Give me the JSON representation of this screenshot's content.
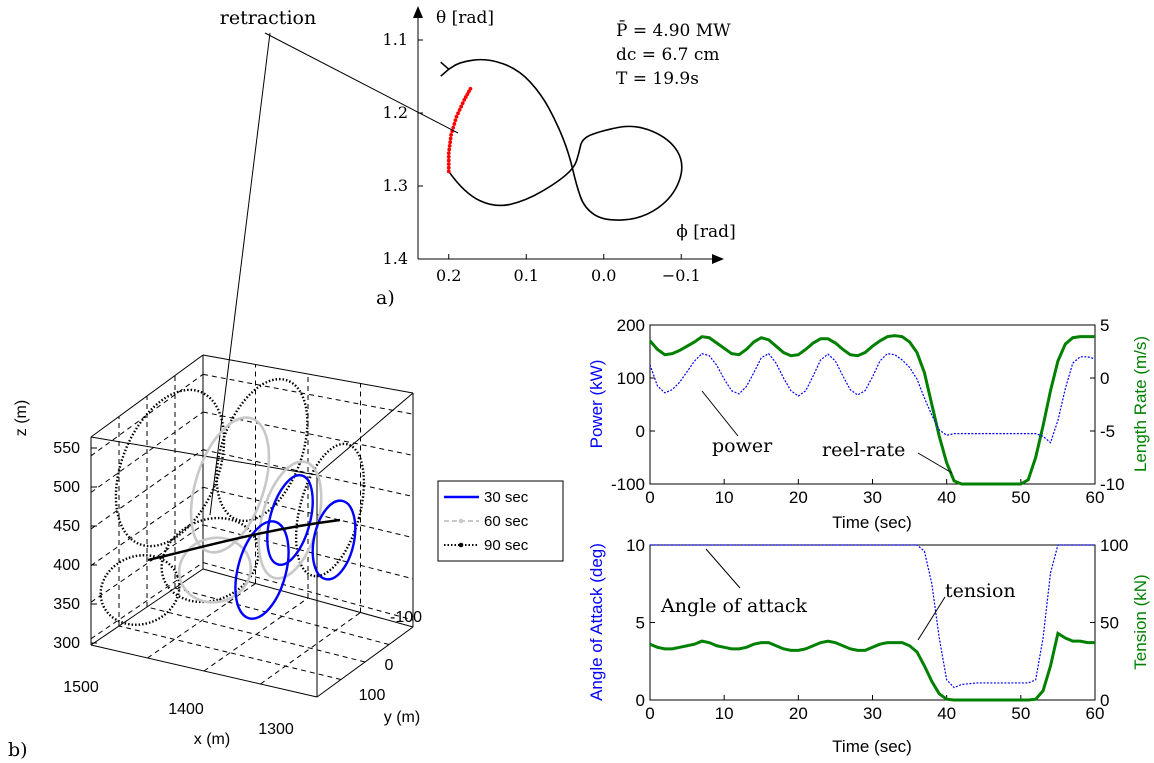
{
  "chart_data": [
    {
      "panel_label": "a)",
      "type": "line",
      "xlabel": "ϕ [rad]",
      "ylabel": "θ [rad]",
      "xlim": [
        0.25,
        -0.15
      ],
      "ylim": [
        1.4,
        1.08
      ],
      "xticks": [
        0.2,
        0.1,
        0.0,
        -0.1
      ],
      "xtick_labels": [
        "0.2",
        "0.1",
        "0.0",
        "−0.1"
      ],
      "yticks": [
        1.1,
        1.2,
        1.3,
        1.4
      ],
      "ytick_labels": [
        "1.1",
        "1.2",
        "1.3",
        "1.4"
      ],
      "params": [
        "P̄ = 4.90 MW",
        "dc = 6.7 cm",
        "T = 19.9s"
      ],
      "annotation": "retraction",
      "path_x": [
        0.2,
        0.205,
        0.195,
        0.175,
        0.14,
        0.1,
        0.06,
        0.035,
        0.035,
        0.01,
        -0.04,
        -0.08,
        -0.1,
        -0.08,
        -0.03,
        0.01,
        0.032,
        0.048,
        0.06,
        0.075,
        0.09,
        0.11
      ],
      "path_y": [
        1.28,
        1.24,
        1.2,
        1.155,
        1.135,
        1.125,
        1.145,
        1.2,
        1.25,
        1.225,
        1.22,
        1.24,
        1.28,
        1.33,
        1.35,
        1.34,
        1.31,
        1.27,
        1.245,
        1.225,
        1.22,
        1.21
      ],
      "path_main_x": [
        0.2,
        0.18,
        0.14,
        0.1,
        0.06,
        0.038,
        0.032,
        0.028,
        0.005,
        -0.04,
        -0.085,
        -0.105,
        -0.09,
        -0.05,
        -0.0,
        0.025,
        0.035,
        0.045,
        0.06,
        0.08,
        0.11,
        0.15,
        0.185,
        0.2
      ],
      "path_main_y": [
        1.28,
        1.31,
        1.33,
        1.32,
        1.295,
        1.275,
        1.255,
        1.235,
        1.225,
        1.215,
        1.235,
        1.27,
        1.315,
        1.345,
        1.348,
        1.33,
        1.3,
        1.255,
        1.215,
        1.175,
        1.14,
        1.125,
        1.13,
        1.14
      ],
      "retraction_x": [
        0.2,
        0.2,
        0.197,
        0.19,
        0.18,
        0.17
      ],
      "retraction_y": [
        1.28,
        1.255,
        1.23,
        1.205,
        1.182,
        1.163
      ]
    },
    {
      "panel_label": "b)",
      "type": "line",
      "xlabel": "x (m)",
      "ylabel": "y (m)",
      "zlabel": "z (m)",
      "xticks": [
        1500,
        1400,
        1300
      ],
      "xtick_labels": [
        "1500",
        "1400",
        "1300"
      ],
      "yticks": [
        -100,
        0,
        100
      ],
      "ytick_labels": [
        "-100",
        "0",
        "100"
      ],
      "zticks": [
        300,
        350,
        400,
        450,
        500,
        550
      ],
      "ztick_labels": [
        "300",
        "350",
        "400",
        "450",
        "500",
        "550"
      ],
      "legend_position": "right",
      "series": [
        {
          "name": "30 sec",
          "color": "#0000ff",
          "style": "solid"
        },
        {
          "name": "60 sec",
          "color": "#c8c8c8",
          "style": "dashed"
        },
        {
          "name": "90 sec",
          "color": "#000000",
          "style": "dotted"
        }
      ]
    },
    {
      "type": "line",
      "xlabel": "Time (sec)",
      "ylabel": "Power (kW)",
      "y2label": "Length Rate (m/s)",
      "xlim": [
        0,
        60
      ],
      "ylim": [
        -100,
        200
      ],
      "y2lim": [
        -10,
        5
      ],
      "xticks": [
        0,
        10,
        20,
        30,
        40,
        50,
        60
      ],
      "xtick_labels": [
        "0",
        "10",
        "20",
        "30",
        "40",
        "50",
        "60"
      ],
      "yticks": [
        -100,
        0,
        100,
        200
      ],
      "ytick_labels": [
        "-100",
        "0",
        "100",
        "200"
      ],
      "y2ticks": [
        -10,
        -5,
        0,
        5
      ],
      "y2tick_labels": [
        "-10",
        "-5",
        "0",
        "5"
      ],
      "annotations": [
        "power",
        "reel-rate"
      ],
      "series": [
        {
          "name": "power",
          "axis": "left",
          "color": "#0000ff",
          "x": [
            0,
            1,
            2,
            3,
            4,
            5,
            6,
            7,
            8,
            9,
            10,
            11,
            12,
            13,
            14,
            15,
            16,
            17,
            18,
            19,
            20,
            21,
            22,
            23,
            24,
            25,
            26,
            27,
            28,
            29,
            30,
            31,
            32,
            33,
            34,
            35,
            36,
            37,
            38,
            39,
            40,
            41,
            42,
            43,
            44,
            45,
            46,
            47,
            48,
            49,
            50,
            51,
            52,
            53,
            54,
            55,
            56,
            57,
            58,
            59,
            60
          ],
          "y": [
            125,
            85,
            72,
            78,
            92,
            112,
            132,
            146,
            142,
            124,
            98,
            76,
            70,
            84,
            110,
            138,
            146,
            128,
            100,
            76,
            66,
            76,
            104,
            134,
            145,
            132,
            104,
            78,
            68,
            76,
            102,
            132,
            146,
            144,
            134,
            120,
            98,
            62,
            30,
            2,
            -8,
            -5,
            -5,
            -5,
            -5,
            -5,
            -5,
            -5,
            -5,
            -5,
            -5,
            -5,
            -5,
            -10,
            -22,
            20,
            80,
            128,
            140,
            140,
            136
          ]
        },
        {
          "name": "reel-rate",
          "axis": "right",
          "color": "#008000",
          "x": [
            0,
            1,
            2,
            3,
            4,
            5,
            6,
            7,
            8,
            9,
            10,
            11,
            12,
            13,
            14,
            15,
            16,
            17,
            18,
            19,
            20,
            21,
            22,
            23,
            24,
            25,
            26,
            27,
            28,
            29,
            30,
            31,
            32,
            33,
            34,
            35,
            36,
            37,
            38,
            39,
            40,
            41,
            42,
            43,
            44,
            45,
            46,
            47,
            48,
            49,
            50,
            51,
            52,
            53,
            54,
            55,
            56,
            57,
            58,
            59,
            60
          ],
          "y": [
            3.5,
            2.7,
            2.2,
            2.3,
            2.6,
            3.0,
            3.4,
            3.9,
            3.8,
            3.3,
            2.8,
            2.3,
            2.2,
            2.7,
            3.4,
            3.8,
            3.6,
            3.0,
            2.4,
            2.1,
            2.2,
            2.7,
            3.3,
            3.7,
            3.7,
            3.3,
            2.7,
            2.2,
            2.1,
            2.4,
            3.0,
            3.5,
            3.9,
            4.0,
            3.9,
            3.4,
            2.4,
            0.5,
            -2.5,
            -5.5,
            -8.0,
            -9.7,
            -10,
            -10,
            -10,
            -10,
            -10,
            -10,
            -10,
            -10,
            -10,
            -9.6,
            -7.5,
            -4.5,
            -1.2,
            1.6,
            3.2,
            3.8,
            3.9,
            3.9,
            3.9
          ]
        }
      ]
    },
    {
      "type": "line",
      "xlabel": "Time (sec)",
      "ylabel": "Angle of Attack (deg)",
      "y2label": "Tension (kN)",
      "xlim": [
        0,
        60
      ],
      "ylim": [
        0,
        10
      ],
      "y2lim": [
        0,
        100
      ],
      "xticks": [
        0,
        10,
        20,
        30,
        40,
        50,
        60
      ],
      "xtick_labels": [
        "0",
        "10",
        "20",
        "30",
        "40",
        "50",
        "60"
      ],
      "yticks": [
        0,
        5,
        10
      ],
      "ytick_labels": [
        "0",
        "5",
        "10"
      ],
      "y2ticks": [
        0,
        50,
        100
      ],
      "y2tick_labels": [
        "0",
        "50",
        "100"
      ],
      "annotations": [
        "Angle of attack",
        "tension"
      ],
      "series": [
        {
          "name": "Angle of attack",
          "axis": "left",
          "color": "#0000ff",
          "x": [
            0,
            5,
            10,
            15,
            20,
            25,
            30,
            35,
            36,
            37,
            38,
            39,
            40,
            41,
            42,
            44,
            46,
            48,
            50,
            51,
            52,
            53,
            54,
            55,
            56,
            58,
            60
          ],
          "y": [
            10,
            10,
            10,
            10,
            10,
            10,
            10,
            10,
            10,
            9.6,
            7.5,
            4.0,
            1.3,
            0.8,
            1.0,
            1.1,
            1.1,
            1.1,
            1.1,
            1.1,
            1.3,
            4.0,
            8.2,
            10,
            10,
            10,
            10
          ]
        },
        {
          "name": "tension",
          "axis": "right",
          "color": "#008000",
          "x": [
            0,
            1,
            2,
            3,
            4,
            5,
            6,
            7,
            8,
            9,
            10,
            11,
            12,
            13,
            14,
            15,
            16,
            17,
            18,
            19,
            20,
            21,
            22,
            23,
            24,
            25,
            26,
            27,
            28,
            29,
            30,
            31,
            32,
            33,
            34,
            35,
            36,
            37,
            38,
            39,
            40,
            41,
            42,
            44,
            46,
            48,
            50,
            51,
            52,
            53,
            54,
            55,
            56,
            57,
            58,
            59,
            60
          ],
          "y": [
            36,
            34,
            33,
            33,
            34,
            35,
            36,
            38,
            37,
            35,
            34,
            33,
            33,
            34,
            36,
            37,
            37,
            35,
            33,
            32,
            32,
            33,
            35,
            37,
            38,
            37,
            35,
            33,
            32,
            32,
            34,
            36,
            37,
            37,
            37,
            35,
            31,
            22,
            12,
            4,
            0.5,
            0,
            0,
            0,
            0,
            0,
            0,
            0,
            0.5,
            6,
            22,
            43,
            40,
            38,
            38,
            37,
            37
          ]
        }
      ]
    }
  ]
}
